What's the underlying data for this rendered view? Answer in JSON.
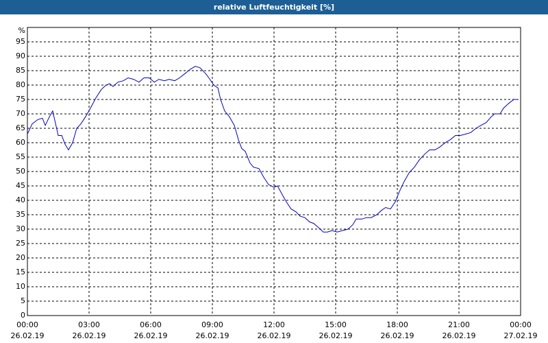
{
  "chart_data": {
    "type": "line",
    "title": "relative Luftfeuchtigkeit [%]",
    "y_unit": "%",
    "color": "#0000c0",
    "grid": true,
    "xlim": [
      0,
      24
    ],
    "ylim": [
      0,
      100
    ],
    "xticks": [
      {
        "value": 0,
        "label": "00:00"
      },
      {
        "value": 3,
        "label": "03:00"
      },
      {
        "value": 6,
        "label": "06:00"
      },
      {
        "value": 9,
        "label": "09:00"
      },
      {
        "value": 12,
        "label": "12:00"
      },
      {
        "value": 15,
        "label": "15:00"
      },
      {
        "value": 18,
        "label": "18:00"
      },
      {
        "value": 21,
        "label": "21:00"
      },
      {
        "value": 24,
        "label": "00:00"
      }
    ],
    "xtick_dates": [
      "26.02.19",
      "26.02.19",
      "26.02.19",
      "26.02.19",
      "26.02.19",
      "26.02.19",
      "26.02.19",
      "26.02.19",
      "27.02.19"
    ],
    "yticks": [
      0,
      5,
      10,
      15,
      20,
      25,
      30,
      35,
      40,
      45,
      50,
      55,
      60,
      65,
      70,
      75,
      80,
      85,
      90,
      95
    ],
    "x": [
      0,
      0.23,
      0.5,
      0.73,
      0.87,
      1.07,
      1.23,
      1.5,
      1.67,
      1.83,
      2,
      2.2,
      2.4,
      2.6,
      2.83,
      3.07,
      3.33,
      3.6,
      3.83,
      4,
      4.17,
      4.4,
      4.67,
      4.9,
      5.17,
      5.43,
      5.67,
      5.93,
      6.17,
      6.4,
      6.67,
      6.9,
      7.17,
      7.4,
      7.67,
      7.93,
      8.17,
      8.4,
      8.67,
      8.83,
      9.07,
      9.27,
      9.4,
      9.6,
      9.83,
      10.07,
      10.27,
      10.43,
      10.6,
      10.83,
      11,
      11.27,
      11.5,
      11.73,
      12,
      12.17,
      12.4,
      12.6,
      12.83,
      13.07,
      13.27,
      13.5,
      13.73,
      13.93,
      14.17,
      14.4,
      14.6,
      14.83,
      15.07,
      15.33,
      15.6,
      15.83,
      16,
      16.27,
      16.5,
      16.73,
      17,
      17.23,
      17.43,
      17.67,
      17.9,
      18.1,
      18.33,
      18.57,
      18.83,
      19.07,
      19.33,
      19.57,
      19.83,
      20.07,
      20.33,
      20.57,
      20.83,
      21.07,
      21.33,
      21.57,
      21.83,
      22.07,
      22.33,
      22.57,
      22.73,
      23,
      23.17,
      23.4,
      23.67,
      23.83
    ],
    "values": [
      63,
      66.5,
      68,
      68.5,
      66,
      69,
      71,
      62.5,
      62.5,
      59.5,
      57.5,
      60,
      65,
      66.5,
      69,
      72,
      75.5,
      78.5,
      80,
      80.5,
      79.5,
      81,
      81.5,
      82.5,
      82,
      81,
      82.5,
      82.5,
      81,
      82,
      81.5,
      82,
      81.5,
      82.5,
      84,
      85.5,
      86.5,
      86,
      84,
      82.5,
      80,
      79,
      75,
      71,
      69,
      66,
      61,
      58,
      57,
      53,
      51.5,
      51,
      48,
      45.5,
      44.5,
      45,
      42,
      39.5,
      37,
      36,
      34.5,
      34,
      32.5,
      32,
      30.5,
      29,
      29,
      29.5,
      29,
      29.5,
      30,
      31.5,
      33.5,
      33.5,
      34,
      34,
      35,
      36.5,
      37.5,
      37,
      39.5,
      43,
      46.5,
      49.5,
      51.5,
      54,
      56,
      57.5,
      57.5,
      58.5,
      60,
      61,
      62.5,
      62.5,
      63,
      63.5,
      65,
      66,
      67,
      69,
      70,
      70,
      72,
      73.5,
      75,
      75
    ]
  }
}
